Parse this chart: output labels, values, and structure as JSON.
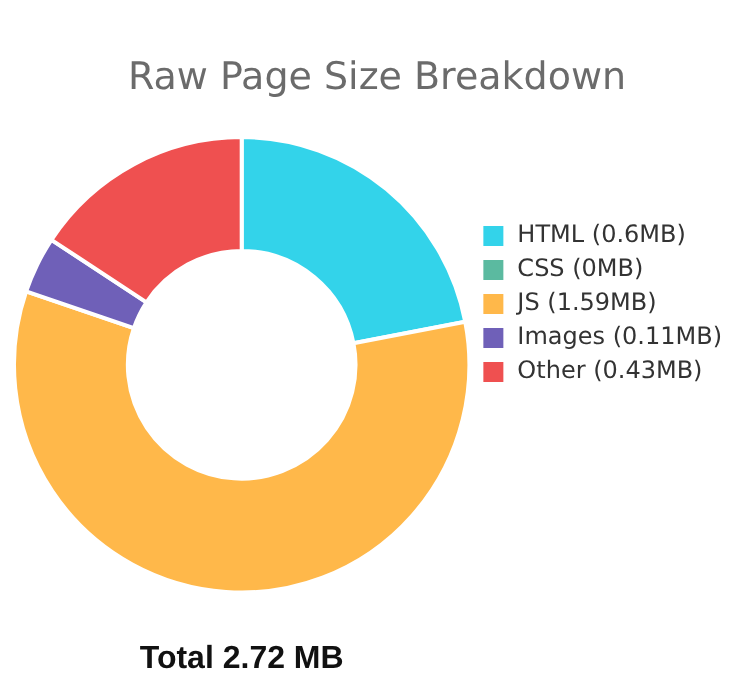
{
  "chart_data": {
    "type": "donut",
    "title": "Raw Page Size Breakdown",
    "categories": [
      "HTML (0.6MB)",
      "CSS (0MB)",
      "JS (1.59MB)",
      "Images (0.11MB)",
      "Other (0.43MB)"
    ],
    "values": [
      0.6,
      0,
      1.59,
      0.11,
      0.43
    ],
    "colors": [
      "#33d3ea",
      "#5bbaa0",
      "#ffb84a",
      "#6f60b8",
      "#ef5050"
    ],
    "legend": "right",
    "annotations": [
      "Total 2.72 MB"
    ]
  }
}
